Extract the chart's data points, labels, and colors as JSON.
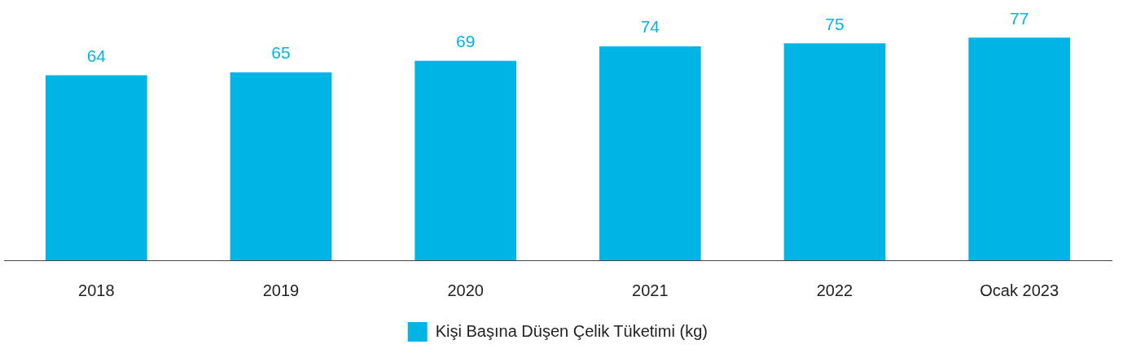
{
  "chart_data": {
    "type": "bar",
    "categories": [
      "2018",
      "2019",
      "2020",
      "2021",
      "2022",
      "Ocak 2023"
    ],
    "series": [
      {
        "name": "Kişi Başına Düşen Çelik Tüketimi (kg)",
        "color": "#00b5e6",
        "values": [
          64,
          65,
          69,
          74,
          75,
          77
        ]
      }
    ],
    "tick_labels": "x",
    "data_labels": true,
    "grid": false,
    "legend": "bottom"
  }
}
